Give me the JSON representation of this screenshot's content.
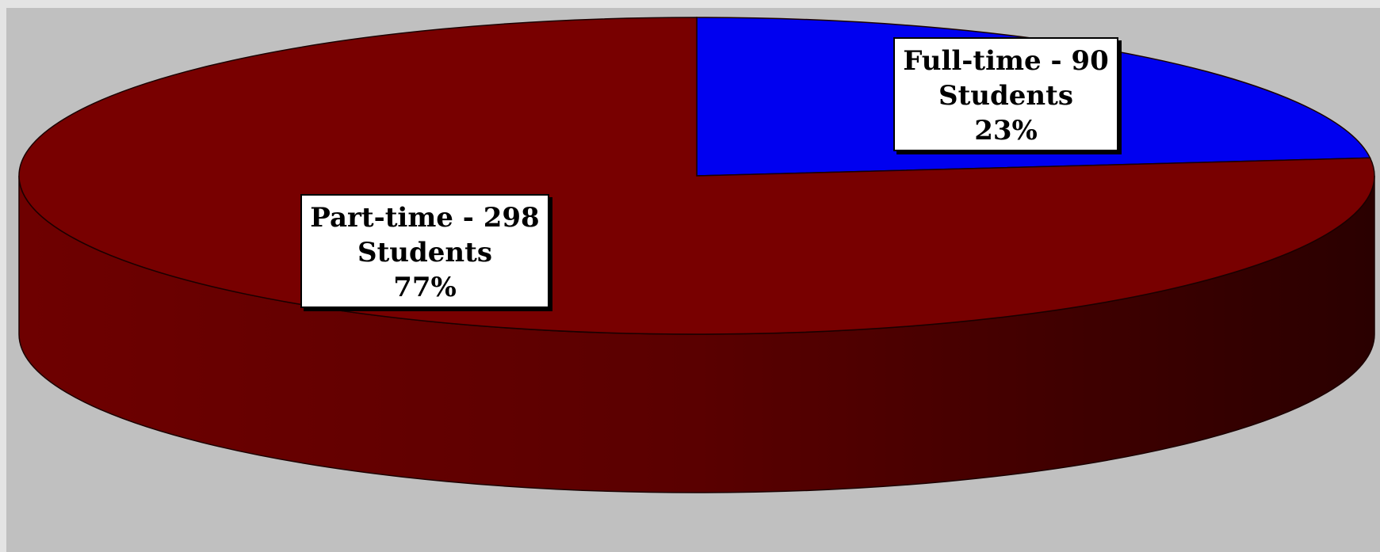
{
  "colors": {
    "page_background": "#e4e4e4",
    "plot_area": "#c0c0c0",
    "part_time": "#780000",
    "full_time": "#0000f0"
  },
  "chart_data": {
    "type": "pie",
    "style": "3d",
    "title": "",
    "legend": "none",
    "slices": [
      {
        "name": "Full-time",
        "value": 90,
        "percent": 23,
        "color": "#0000f0",
        "label_lines": [
          "Full-time - 90",
          "Students",
          "23%"
        ]
      },
      {
        "name": "Part-time",
        "value": 298,
        "percent": 77,
        "color": "#780000",
        "label_lines": [
          "Part-time - 298",
          "Students",
          "77%"
        ]
      }
    ]
  }
}
